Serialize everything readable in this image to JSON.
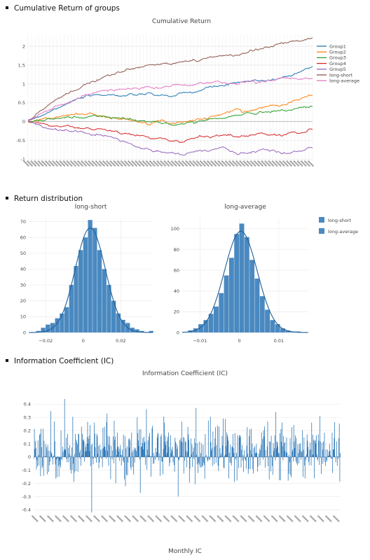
{
  "sections": {
    "cum": "Cumulative Return of groups",
    "dist": "Return distribution",
    "ic": "Information Coefficient (IC)"
  },
  "colors": {
    "Group1": "#1f77b4",
    "Group2": "#ff7f0e",
    "Group3": "#2ca02c",
    "Group4": "#d62728",
    "Group5": "#9467bd",
    "long-short": "#8c564b",
    "long-average": "#e377c2",
    "hist": "#4a89c0",
    "ic": "#1f6fb4"
  },
  "chart_data": [
    {
      "type": "line",
      "title": "Cumulative Return",
      "ylim": [
        -1.05,
        2.3
      ],
      "yticks": [
        "2",
        "1.5",
        "1",
        "0.5",
        "0",
        "-0.5",
        "-1"
      ],
      "grid": true,
      "legend_position": "top-right",
      "series": [
        {
          "name": "Group1",
          "values": [
            0,
            0.17,
            0.33,
            0.5,
            0.6,
            0.67,
            0.73,
            0.7,
            0.68,
            0.72,
            0.7,
            0.67,
            0.72,
            0.8,
            0.9,
            0.95,
            1.0,
            1.05,
            1.1,
            1.12,
            1.2,
            1.3,
            1.5
          ]
        },
        {
          "name": "Group2",
          "values": [
            0,
            0.05,
            0.1,
            0.17,
            0.2,
            0.2,
            0.15,
            0.08,
            0.02,
            0.0,
            0.03,
            -0.02,
            0.0,
            0.05,
            0.1,
            0.2,
            0.3,
            0.3,
            0.35,
            0.45,
            0.5,
            0.6,
            0.7
          ]
        },
        {
          "name": "Group3",
          "values": [
            0,
            0.03,
            0.06,
            0.1,
            0.12,
            0.15,
            0.12,
            0.08,
            0.05,
            0.0,
            -0.03,
            -0.08,
            -0.05,
            0.0,
            0.05,
            0.08,
            0.15,
            0.2,
            0.25,
            0.3,
            0.3,
            0.35,
            0.42
          ]
        },
        {
          "name": "Group4",
          "values": [
            0,
            -0.05,
            -0.1,
            -0.15,
            -0.18,
            -0.2,
            -0.23,
            -0.3,
            -0.38,
            -0.4,
            -0.45,
            -0.5,
            -0.55,
            -0.4,
            -0.38,
            -0.35,
            -0.4,
            -0.35,
            -0.3,
            -0.38,
            -0.33,
            -0.3,
            -0.2
          ]
        },
        {
          "name": "Group5",
          "values": [
            0,
            -0.12,
            -0.2,
            -0.25,
            -0.3,
            -0.33,
            -0.35,
            -0.45,
            -0.6,
            -0.72,
            -0.8,
            -0.85,
            -0.9,
            -0.75,
            -0.78,
            -0.72,
            -0.8,
            -0.85,
            -0.78,
            -0.8,
            -0.85,
            -0.8,
            -0.7
          ]
        },
        {
          "name": "long-short",
          "values": [
            0,
            0.3,
            0.5,
            0.7,
            0.9,
            1.1,
            1.25,
            1.3,
            1.4,
            1.45,
            1.5,
            1.55,
            1.6,
            1.62,
            1.7,
            1.75,
            1.8,
            1.85,
            1.95,
            2.0,
            2.08,
            2.15,
            2.2
          ]
        },
        {
          "name": "long-average",
          "values": [
            0,
            0.2,
            0.35,
            0.5,
            0.65,
            0.75,
            0.82,
            0.85,
            0.88,
            0.9,
            0.92,
            0.93,
            0.95,
            0.97,
            1.0,
            1.02,
            1.04,
            1.06,
            1.08,
            1.1,
            1.12,
            1.14,
            1.16
          ]
        }
      ]
    },
    {
      "type": "bar",
      "title": "long-short",
      "xticks": [
        "−0.02",
        "0",
        "0.02"
      ],
      "xlim": [
        -0.029,
        0.037
      ],
      "yticks": [
        "70",
        "60",
        "50",
        "40",
        "30",
        "20",
        "10",
        "0"
      ],
      "ylim": [
        0,
        72
      ],
      "bin_start": -0.025,
      "bin_width": 0.0025,
      "counts": [
        1,
        3,
        5,
        6,
        9,
        12,
        16,
        30,
        42,
        52,
        60,
        71,
        66,
        52,
        40,
        30,
        20,
        12,
        8,
        6,
        3,
        2,
        1,
        0,
        1
      ],
      "legend": "long-short"
    },
    {
      "type": "bar",
      "title": "long-average",
      "xticks": [
        "−0.01",
        "0",
        "0.01"
      ],
      "xlim": [
        -0.0145,
        0.0175
      ],
      "yticks": [
        "100",
        "80",
        "60",
        "40",
        "20",
        "0"
      ],
      "ylim": [
        0,
        110
      ],
      "bin_start": -0.013,
      "bin_width": 0.0013,
      "counts": [
        2,
        4,
        8,
        12,
        18,
        25,
        38,
        55,
        72,
        95,
        105,
        92,
        70,
        52,
        35,
        22,
        12,
        8,
        4,
        2,
        1,
        1
      ],
      "legend": "long-average"
    },
    {
      "type": "bar",
      "title": "Information Coefficient (IC)",
      "xlabel": "Monthly IC",
      "yticks": [
        "0.4",
        "0.3",
        "0.2",
        "0.1",
        "0",
        "-0.1",
        "-0.2",
        "-0.3",
        "-0.4"
      ],
      "ylim": [
        -0.43,
        0.45
      ],
      "n_bars": 600,
      "amplitude_sd": 0.11,
      "extremes": {
        "max": 0.44,
        "min": -0.42
      }
    }
  ]
}
